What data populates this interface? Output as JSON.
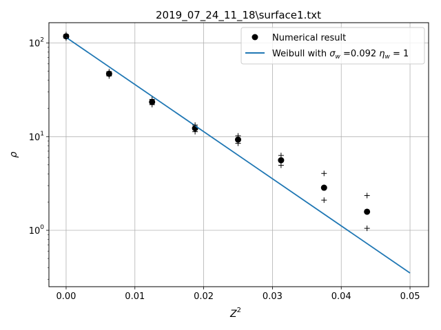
{
  "chart_data": {
    "type": "scatter",
    "title": "2019_07_24_11_18\\surface1.txt",
    "xlabel": "Z",
    "xlabel_sup": "2",
    "ylabel": "ρ",
    "xlim": [
      -0.0025,
      0.0527
    ],
    "ylim": [
      0.25,
      165
    ],
    "y_scale": "log",
    "grid": true,
    "legend_position": "upper right",
    "x_ticks": [
      {
        "value": 0.0,
        "label": "0.00"
      },
      {
        "value": 0.01,
        "label": "0.01"
      },
      {
        "value": 0.02,
        "label": "0.02"
      },
      {
        "value": 0.03,
        "label": "0.03"
      },
      {
        "value": 0.04,
        "label": "0.04"
      },
      {
        "value": 0.05,
        "label": "0.05"
      }
    ],
    "y_ticks": [
      {
        "value": 1,
        "base": "10",
        "exp": "0"
      },
      {
        "value": 10,
        "base": "10",
        "exp": "1"
      },
      {
        "value": 100,
        "base": "10",
        "exp": "2"
      }
    ],
    "series": [
      {
        "name": "Numerical result",
        "kind": "points",
        "color": "#000000",
        "marker": "circle",
        "x": [
          0.0,
          0.00625,
          0.0125,
          0.01875,
          0.025,
          0.03125,
          0.0375,
          0.04375
        ],
        "y": [
          118,
          47,
          23.5,
          12.3,
          9.3,
          5.6,
          2.85,
          1.58
        ]
      },
      {
        "name": "Weibull with σ_w =0.092 η_w = 1",
        "kind": "line",
        "color": "#1f77b4",
        "x": [
          0.0,
          0.05
        ],
        "y": [
          115,
          0.35
        ]
      },
      {
        "kind": "plus",
        "color": "#000000",
        "x": [
          0.0,
          0.0,
          0.00625,
          0.00625,
          0.0125,
          0.0125,
          0.01875,
          0.01875,
          0.025,
          0.025,
          0.03125,
          0.03125,
          0.0375,
          0.0375,
          0.04375,
          0.04375
        ],
        "y": [
          123,
          113,
          49.5,
          44.5,
          25,
          22,
          13.3,
          11.3,
          10.2,
          8.5,
          6.3,
          4.95,
          4.05,
          2.1,
          2.35,
          1.05
        ]
      }
    ],
    "legend": {
      "numerical_label": "Numerical result",
      "weibull_prefix": "Weibull with ",
      "sigma_symbol": "σ",
      "sigma_sub": "w",
      "sigma_value": " =0.092 ",
      "eta_symbol": "η",
      "eta_sub": "w",
      "eta_value": " = 1"
    }
  }
}
